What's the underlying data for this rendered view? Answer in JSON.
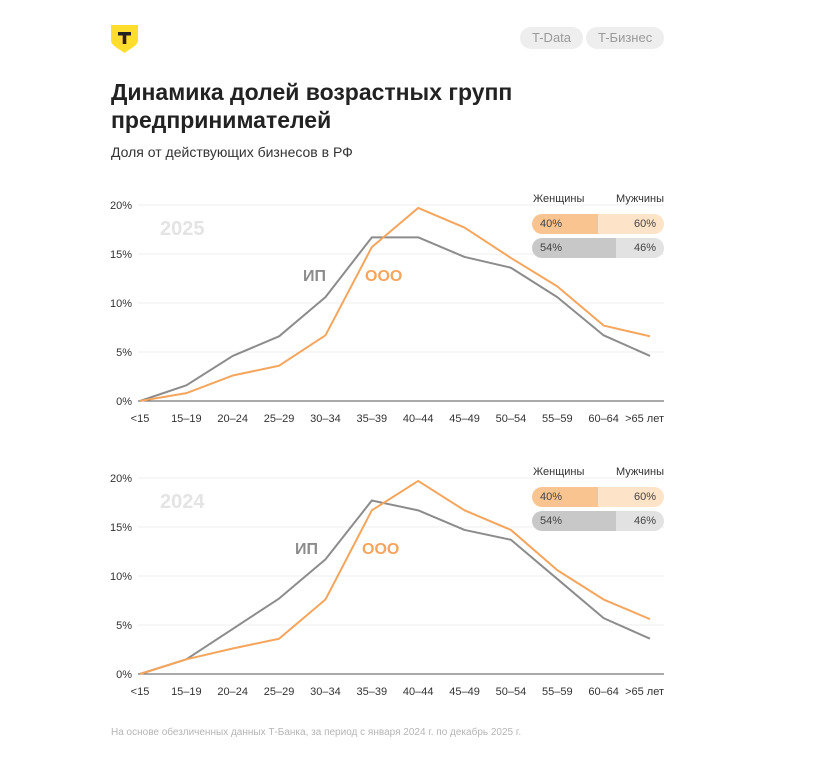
{
  "header": {
    "logo_letter": "Т",
    "brand_color": "#ffdd2d",
    "tags": [
      "T-Data",
      "T-Бизнес"
    ],
    "title": "Динамика долей возрастных групп предпринимателей",
    "subtitle": "Доля от действующих бизнесов в РФ"
  },
  "footer": "На основе обезличенных данных Т-Банка, за период с января 2024 г. по декабрь 2025 г.",
  "chart_data": [
    {
      "type": "line",
      "year_label": "2025",
      "categories": [
        "<15",
        "15–19",
        "20–24",
        "25–29",
        "30–34",
        "35–39",
        "40–44",
        "45–49",
        "50–54",
        "55–59",
        "60–64",
        ">65 лет"
      ],
      "ylim": [
        0,
        20
      ],
      "yticks": [
        "0%",
        "5%",
        "10%",
        "15%",
        "20%"
      ],
      "grid": true,
      "series": [
        {
          "name": "ИП",
          "color": "#8c8c8c",
          "values": [
            0,
            1.6,
            4.6,
            6.6,
            10.6,
            16.7,
            16.7,
            14.7,
            13.6,
            10.6,
            6.7,
            4.6
          ]
        },
        {
          "name": "ООО",
          "color": "#f5a55c",
          "values": [
            0,
            0.8,
            2.6,
            3.6,
            6.7,
            15.7,
            19.7,
            17.7,
            14.6,
            11.7,
            7.7,
            6.6
          ]
        }
      ],
      "legend": {
        "women_label": "Женщины",
        "men_label": "Мужчины",
        "ooo": {
          "women": "40%",
          "men": "60%",
          "women_share": 40
        },
        "ip": {
          "women": "54%",
          "men": "46%",
          "women_share": 54
        }
      }
    },
    {
      "type": "line",
      "year_label": "2024",
      "categories": [
        "<15",
        "15–19",
        "20–24",
        "25–29",
        "30–34",
        "35–39",
        "40–44",
        "45–49",
        "50–54",
        "55–59",
        "60–64",
        ">65 лет"
      ],
      "ylim": [
        0,
        20
      ],
      "yticks": [
        "0%",
        "5%",
        "10%",
        "15%",
        "20%"
      ],
      "grid": true,
      "series": [
        {
          "name": "ИП",
          "color": "#8c8c8c",
          "values": [
            0,
            1.5,
            4.6,
            7.7,
            11.7,
            17.7,
            16.7,
            14.7,
            13.7,
            9.7,
            5.7,
            3.6
          ]
        },
        {
          "name": "ООО",
          "color": "#f5a55c",
          "values": [
            0,
            1.5,
            2.6,
            3.6,
            7.6,
            16.7,
            19.7,
            16.7,
            14.7,
            10.6,
            7.6,
            5.6
          ]
        }
      ],
      "legend": {
        "women_label": "Женщины",
        "men_label": "Мужчины",
        "ooo": {
          "women": "40%",
          "men": "60%",
          "women_share": 40
        },
        "ip": {
          "women": "54%",
          "men": "46%",
          "women_share": 54
        }
      }
    }
  ]
}
